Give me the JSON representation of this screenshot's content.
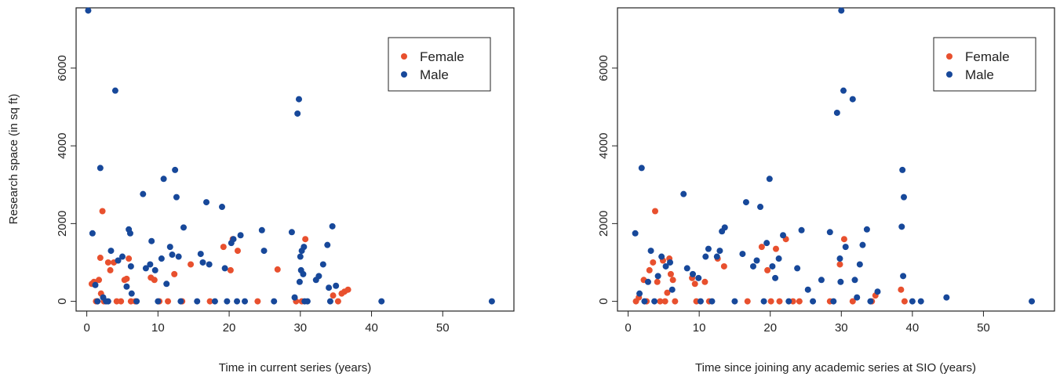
{
  "colors": {
    "female": "#e8502e",
    "male": "#17489a",
    "axis": "#222222"
  },
  "chart_data": [
    {
      "type": "scatter",
      "title": "",
      "xlabel": "Time in current series (years)",
      "ylabel": "Research space (in sq ft)",
      "xlim": [
        -1.5,
        60
      ],
      "ylim": [
        -250,
        7550
      ],
      "xticks": [
        0,
        10,
        20,
        30,
        40,
        50
      ],
      "yticks": [
        0,
        2000,
        4000,
        6000
      ],
      "legend": {
        "position": "top-right",
        "entries": [
          "Female",
          "Male"
        ]
      },
      "series": [
        {
          "name": "Female",
          "points": [
            [
              0.7,
              450
            ],
            [
              1.0,
              500
            ],
            [
              1.3,
              0
            ],
            [
              1.5,
              0
            ],
            [
              1.7,
              550
            ],
            [
              1.9,
              1120
            ],
            [
              2.0,
              200
            ],
            [
              2.2,
              2320
            ],
            [
              2.4,
              0
            ],
            [
              3.0,
              1000
            ],
            [
              3.3,
              800
            ],
            [
              3.8,
              1000
            ],
            [
              4.2,
              0
            ],
            [
              4.8,
              0
            ],
            [
              5.3,
              550
            ],
            [
              5.6,
              580
            ],
            [
              5.9,
              1100
            ],
            [
              6.2,
              0
            ],
            [
              6.8,
              0
            ],
            [
              9.0,
              610
            ],
            [
              9.5,
              550
            ],
            [
              10.2,
              0
            ],
            [
              11.4,
              0
            ],
            [
              12.3,
              700
            ],
            [
              13.4,
              0
            ],
            [
              14.6,
              950
            ],
            [
              17.3,
              0
            ],
            [
              19.2,
              1400
            ],
            [
              20.2,
              800
            ],
            [
              20.5,
              1600
            ],
            [
              21.2,
              1300
            ],
            [
              24.0,
              0
            ],
            [
              26.8,
              820
            ],
            [
              29.4,
              0
            ],
            [
              30.2,
              0
            ],
            [
              30.7,
              1600
            ],
            [
              34.6,
              150
            ],
            [
              35.3,
              0
            ],
            [
              35.8,
              200
            ],
            [
              36.2,
              250
            ],
            [
              36.7,
              300
            ]
          ]
        },
        {
          "name": "Male",
          "points": [
            [
              0.2,
              7480
            ],
            [
              0.8,
              1750
            ],
            [
              1.2,
              420
            ],
            [
              1.5,
              0
            ],
            [
              1.9,
              3430
            ],
            [
              2.3,
              100
            ],
            [
              2.7,
              0
            ],
            [
              3.0,
              0
            ],
            [
              3.4,
              1300
            ],
            [
              4.0,
              5420
            ],
            [
              4.4,
              1050
            ],
            [
              5.0,
              1150
            ],
            [
              5.6,
              380
            ],
            [
              5.9,
              1850
            ],
            [
              6.1,
              1750
            ],
            [
              6.2,
              900
            ],
            [
              6.3,
              200
            ],
            [
              7.0,
              0
            ],
            [
              7.9,
              2760
            ],
            [
              8.3,
              850
            ],
            [
              8.9,
              950
            ],
            [
              9.1,
              1550
            ],
            [
              9.6,
              800
            ],
            [
              10.0,
              0
            ],
            [
              10.5,
              1100
            ],
            [
              10.8,
              3150
            ],
            [
              11.2,
              450
            ],
            [
              11.7,
              1400
            ],
            [
              12.0,
              1200
            ],
            [
              12.4,
              3380
            ],
            [
              12.6,
              2680
            ],
            [
              12.9,
              1150
            ],
            [
              13.2,
              0
            ],
            [
              13.6,
              1900
            ],
            [
              15.5,
              0
            ],
            [
              16.0,
              1220
            ],
            [
              16.3,
              1000
            ],
            [
              16.8,
              2550
            ],
            [
              17.2,
              950
            ],
            [
              18.0,
              0
            ],
            [
              19.0,
              2430
            ],
            [
              19.4,
              850
            ],
            [
              19.7,
              0
            ],
            [
              20.3,
              1500
            ],
            [
              20.6,
              1600
            ],
            [
              21.1,
              0
            ],
            [
              21.6,
              1700
            ],
            [
              22.2,
              0
            ],
            [
              24.6,
              1830
            ],
            [
              24.9,
              1300
            ],
            [
              26.3,
              0
            ],
            [
              28.8,
              1780
            ],
            [
              29.2,
              100
            ],
            [
              29.6,
              4830
            ],
            [
              29.8,
              5200
            ],
            [
              30.0,
              1150
            ],
            [
              30.2,
              1300
            ],
            [
              30.5,
              1400
            ],
            [
              29.9,
              500
            ],
            [
              30.1,
              800
            ],
            [
              30.4,
              700
            ],
            [
              30.6,
              0
            ],
            [
              31.0,
              0
            ],
            [
              32.2,
              550
            ],
            [
              32.6,
              650
            ],
            [
              33.2,
              950
            ],
            [
              33.8,
              1450
            ],
            [
              34.2,
              0
            ],
            [
              34.5,
              1930
            ],
            [
              35.0,
              400
            ],
            [
              34.0,
              350
            ],
            [
              41.4,
              0
            ],
            [
              56.9,
              0
            ]
          ]
        }
      ]
    },
    {
      "type": "scatter",
      "title": "",
      "xlabel": "Time since joining any academic series at SIO (years)",
      "ylabel": "",
      "xlim": [
        -1.5,
        60
      ],
      "ylim": [
        -250,
        7550
      ],
      "xticks": [
        0,
        10,
        20,
        30,
        40,
        50
      ],
      "yticks": [
        0,
        2000,
        4000,
        6000
      ],
      "legend": {
        "position": "top-right",
        "entries": [
          "Female",
          "Male"
        ]
      },
      "series": [
        {
          "name": "Female",
          "points": [
            [
              1.1,
              0
            ],
            [
              1.5,
              100
            ],
            [
              2.2,
              550
            ],
            [
              2.6,
              0
            ],
            [
              3.0,
              800
            ],
            [
              3.8,
              2320
            ],
            [
              3.5,
              1000
            ],
            [
              4.1,
              500
            ],
            [
              4.5,
              0
            ],
            [
              4.9,
              1050
            ],
            [
              5.2,
              0
            ],
            [
              5.5,
              220
            ],
            [
              5.8,
              1100
            ],
            [
              6.0,
              700
            ],
            [
              6.3,
              550
            ],
            [
              6.6,
              0
            ],
            [
              9.0,
              600
            ],
            [
              9.4,
              450
            ],
            [
              9.6,
              0
            ],
            [
              10.8,
              500
            ],
            [
              11.4,
              0
            ],
            [
              12.6,
              1100
            ],
            [
              13.5,
              900
            ],
            [
              16.8,
              0
            ],
            [
              18.8,
              1400
            ],
            [
              19.6,
              800
            ],
            [
              20.1,
              0
            ],
            [
              20.8,
              1350
            ],
            [
              21.3,
              0
            ],
            [
              22.2,
              1600
            ],
            [
              23.2,
              0
            ],
            [
              24.1,
              0
            ],
            [
              28.4,
              0
            ],
            [
              29.8,
              950
            ],
            [
              30.4,
              1600
            ],
            [
              31.6,
              0
            ],
            [
              34.3,
              0
            ],
            [
              34.8,
              150
            ],
            [
              38.4,
              300
            ],
            [
              38.9,
              0
            ]
          ]
        },
        {
          "name": "Male",
          "points": [
            [
              1.0,
              1750
            ],
            [
              1.6,
              200
            ],
            [
              1.9,
              3430
            ],
            [
              2.3,
              0
            ],
            [
              2.8,
              500
            ],
            [
              3.2,
              1300
            ],
            [
              3.7,
              0
            ],
            [
              4.2,
              650
            ],
            [
              4.7,
              1150
            ],
            [
              5.3,
              900
            ],
            [
              5.9,
              1000
            ],
            [
              6.2,
              300
            ],
            [
              7.8,
              2760
            ],
            [
              8.3,
              850
            ],
            [
              9.1,
              700
            ],
            [
              9.9,
              600
            ],
            [
              10.2,
              0
            ],
            [
              10.9,
              1150
            ],
            [
              11.3,
              1350
            ],
            [
              11.8,
              0
            ],
            [
              12.5,
              1150
            ],
            [
              12.9,
              1300
            ],
            [
              13.2,
              1800
            ],
            [
              13.6,
              1900
            ],
            [
              15.0,
              0
            ],
            [
              16.1,
              1220
            ],
            [
              16.6,
              2550
            ],
            [
              17.6,
              900
            ],
            [
              18.1,
              1050
            ],
            [
              18.6,
              2430
            ],
            [
              19.1,
              0
            ],
            [
              19.5,
              1500
            ],
            [
              19.9,
              3150
            ],
            [
              20.3,
              900
            ],
            [
              20.7,
              600
            ],
            [
              21.2,
              1100
            ],
            [
              21.8,
              1700
            ],
            [
              22.6,
              0
            ],
            [
              23.8,
              850
            ],
            [
              24.4,
              1830
            ],
            [
              25.3,
              300
            ],
            [
              26.0,
              0
            ],
            [
              27.2,
              550
            ],
            [
              28.4,
              1780
            ],
            [
              28.9,
              0
            ],
            [
              29.4,
              4850
            ],
            [
              29.8,
              1100
            ],
            [
              30.0,
              7480
            ],
            [
              30.3,
              5420
            ],
            [
              30.6,
              1400
            ],
            [
              29.9,
              500
            ],
            [
              31.6,
              5200
            ],
            [
              31.9,
              550
            ],
            [
              32.2,
              100
            ],
            [
              32.6,
              950
            ],
            [
              33.0,
              1450
            ],
            [
              33.6,
              1850
            ],
            [
              34.1,
              0
            ],
            [
              35.1,
              250
            ],
            [
              38.6,
              3380
            ],
            [
              38.8,
              2680
            ],
            [
              38.5,
              1920
            ],
            [
              38.7,
              650
            ],
            [
              40.0,
              0
            ],
            [
              41.2,
              0
            ],
            [
              44.8,
              100
            ],
            [
              56.8,
              0
            ]
          ]
        }
      ]
    }
  ]
}
